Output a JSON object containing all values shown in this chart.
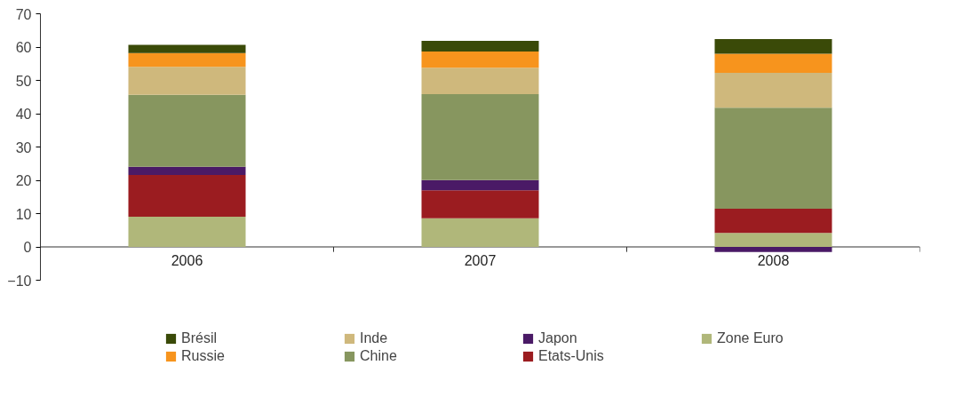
{
  "chart_data": {
    "type": "bar",
    "stacked": true,
    "categories": [
      "2006",
      "2007",
      "2008"
    ],
    "ylim": [
      -10,
      70
    ],
    "yticks": [
      -10,
      0,
      10,
      20,
      30,
      40,
      50,
      60,
      70
    ],
    "grid": false,
    "legend": "bottom",
    "series": [
      {
        "name": "Zone Euro",
        "color": "#b0b77a",
        "values": [
          9.1,
          8.6,
          4.2
        ]
      },
      {
        "name": "Etats-Unis",
        "color": "#9b1c20",
        "values": [
          12.5,
          8.4,
          7.3
        ]
      },
      {
        "name": "Japon",
        "color": "#4a1a66",
        "values": [
          2.5,
          3.1,
          -1.5
        ]
      },
      {
        "name": "Chine",
        "color": "#87965f",
        "values": [
          21.6,
          25.8,
          30.3
        ]
      },
      {
        "name": "Inde",
        "color": "#cfb87c",
        "values": [
          8.4,
          7.9,
          10.5
        ]
      },
      {
        "name": "Russie",
        "color": "#f7941d",
        "values": [
          4.1,
          4.9,
          5.7
        ]
      },
      {
        "name": "Brésil",
        "color": "#3a4a08",
        "values": [
          2.5,
          3.2,
          4.4
        ]
      }
    ]
  }
}
